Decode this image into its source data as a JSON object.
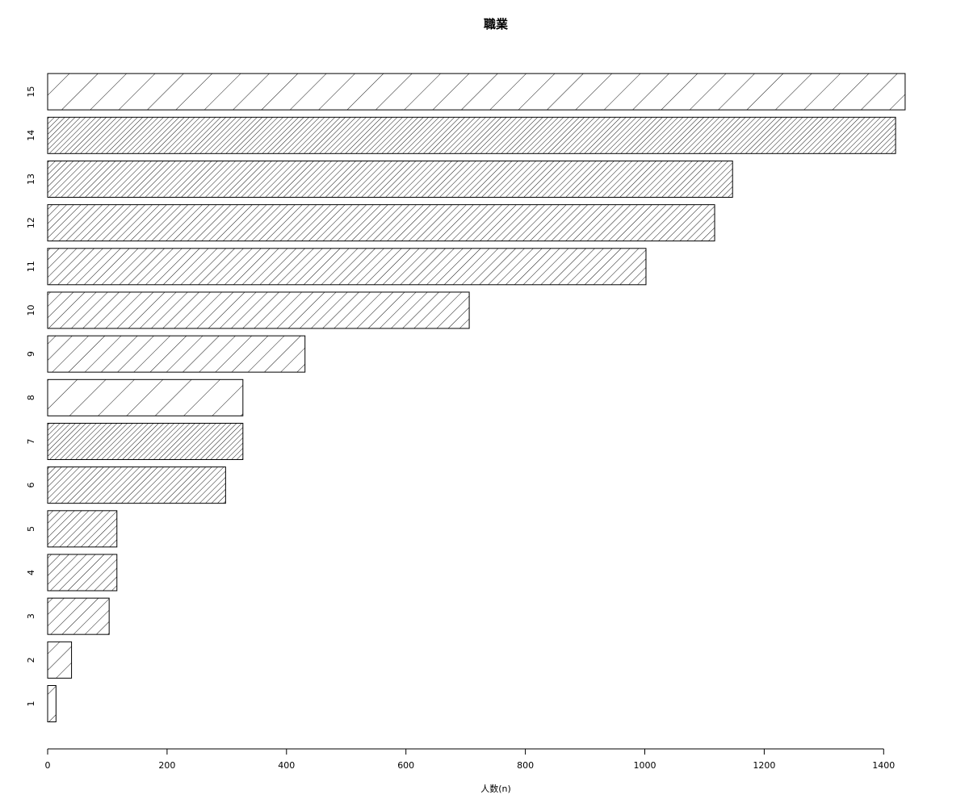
{
  "chart_data": {
    "type": "bar",
    "orientation": "horizontal",
    "title": "職業",
    "xlabel": "人数(n)",
    "ylabel": "",
    "categories": [
      "1",
      "2",
      "3",
      "4",
      "5",
      "6",
      "7",
      "8",
      "9",
      "10",
      "11",
      "12",
      "13",
      "14",
      "15"
    ],
    "values": [
      14,
      40,
      103,
      116,
      116,
      298,
      327,
      327,
      431,
      706,
      1002,
      1117,
      1147,
      1420,
      1436
    ],
    "xlim": [
      0,
      1436
    ],
    "x_ticks": [
      0,
      200,
      400,
      600,
      800,
      1000,
      1200,
      1400
    ],
    "grid": false,
    "bar_fill": "hatched",
    "hatch_densities": [
      8,
      14,
      20,
      26,
      32,
      38,
      44,
      8,
      14,
      20,
      26,
      32,
      38,
      44,
      8
    ],
    "colors": {
      "background": "#ffffff",
      "bar_outline": "#000000",
      "hatch": "#000000"
    }
  }
}
